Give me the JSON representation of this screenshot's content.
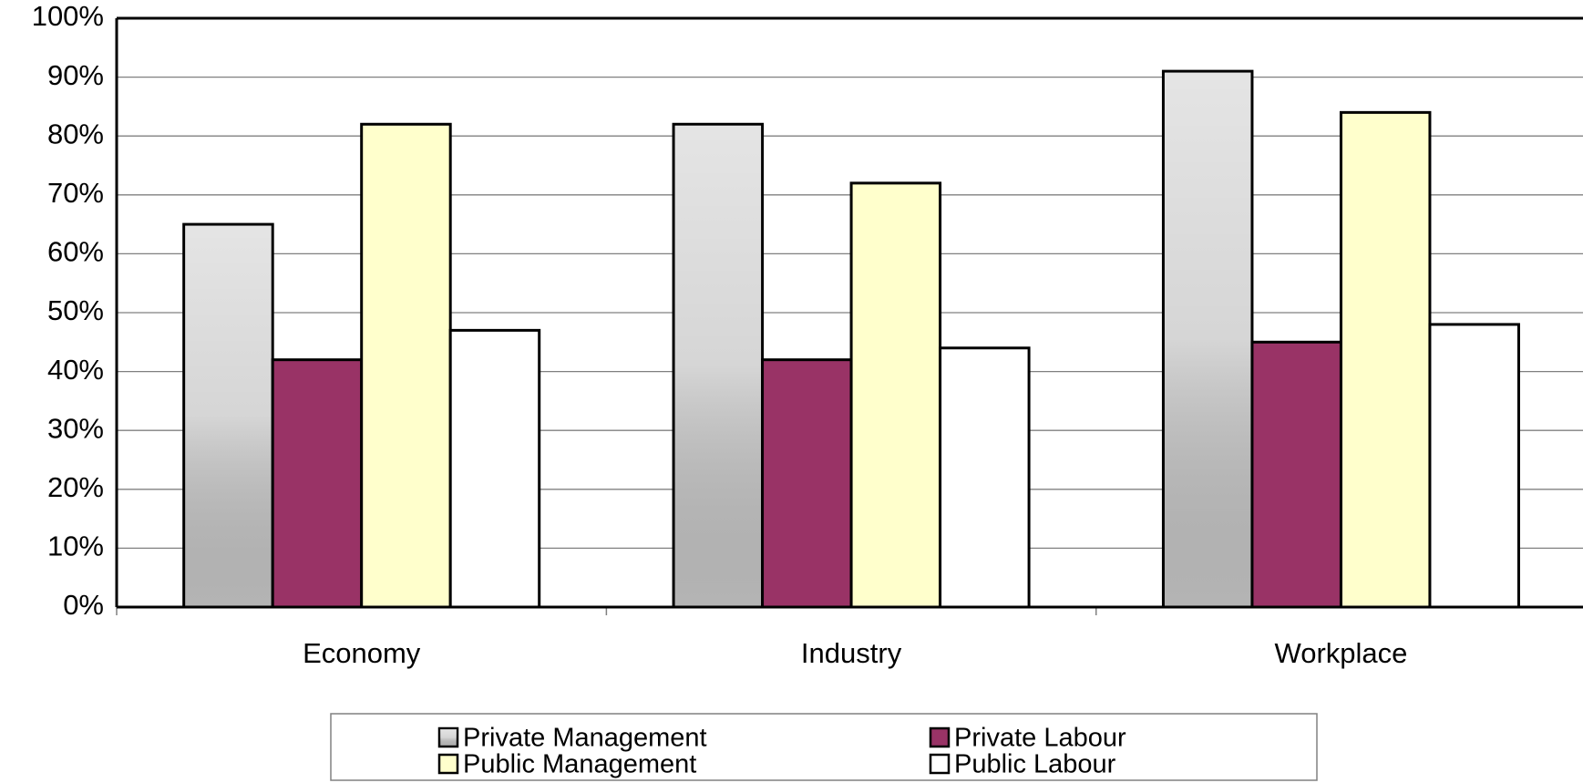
{
  "chart_data": {
    "type": "bar",
    "categories": [
      "Economy",
      "Industry",
      "Workplace"
    ],
    "series": [
      {
        "name": "Private Management",
        "color": "#c4c4c4",
        "values": [
          65,
          82,
          91
        ]
      },
      {
        "name": "Private Labour",
        "color": "#993366",
        "values": [
          42,
          42,
          45
        ]
      },
      {
        "name": "Public Management",
        "color": "#ffffcc",
        "values": [
          82,
          72,
          84
        ]
      },
      {
        "name": "Public Labour",
        "color": "#ffffff",
        "values": [
          47,
          44,
          48
        ]
      }
    ],
    "ylim": [
      0,
      100
    ],
    "yticks": [
      {
        "value": 0,
        "label": "0%"
      },
      {
        "value": 10,
        "label": "10%"
      },
      {
        "value": 20,
        "label": "20%"
      },
      {
        "value": 30,
        "label": "30%"
      },
      {
        "value": 40,
        "label": "40%"
      },
      {
        "value": 50,
        "label": "50%"
      },
      {
        "value": 60,
        "label": "60%"
      },
      {
        "value": 70,
        "label": "70%"
      },
      {
        "value": 80,
        "label": "80%"
      },
      {
        "value": 90,
        "label": "90%"
      },
      {
        "value": 100,
        "label": "100%"
      }
    ],
    "grid": true,
    "legend": "bottom"
  }
}
